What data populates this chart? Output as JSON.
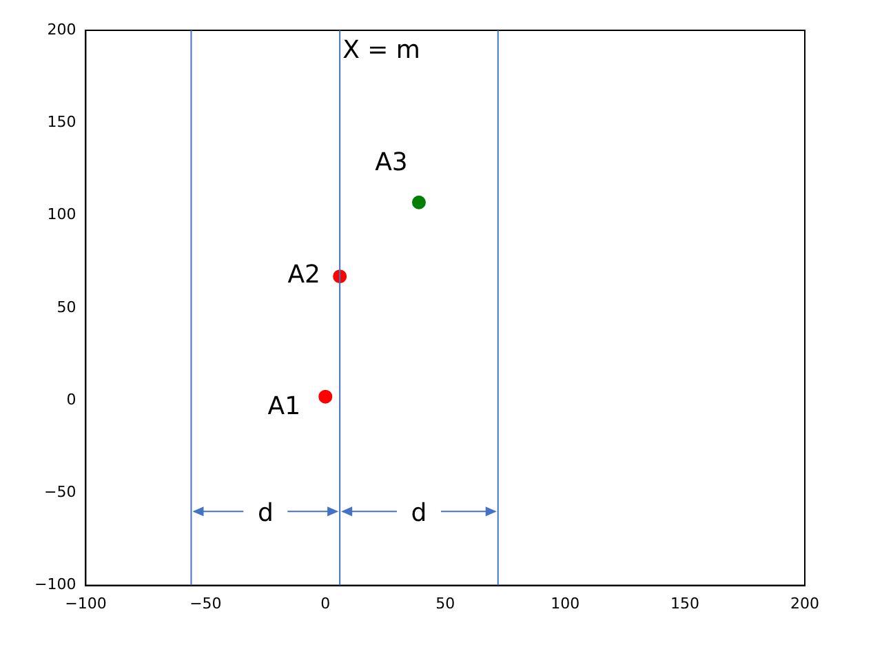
{
  "chart_data": {
    "type": "scatter",
    "series": [
      {
        "color": "#ff0000",
        "x": [
          0,
          6
        ],
        "values": [
          2,
          67
        ]
      },
      {
        "color": "#008000",
        "x": [
          39
        ],
        "values": [
          107
        ]
      }
    ],
    "xlim": [
      -100,
      200
    ],
    "xticks": [
      -100,
      -50,
      0,
      50,
      100,
      150,
      200
    ],
    "ylim": [
      -100,
      200
    ],
    "yticks": [
      -100,
      -50,
      0,
      50,
      100,
      150,
      200
    ],
    "marker": "circle",
    "grid": false,
    "legend": false,
    "ref_lines": [
      {
        "axis": "x",
        "value": -56,
        "color": "#4472c4"
      },
      {
        "axis": "x",
        "value": 6,
        "color": "#4472c4",
        "label": "X = m"
      },
      {
        "axis": "x",
        "value": 72,
        "color": "#4472c4"
      }
    ],
    "annotations": [
      {
        "text": "A1",
        "x": 0,
        "y": 2
      },
      {
        "text": "A2",
        "x": 6,
        "y": 67
      },
      {
        "text": "A3",
        "x": 39,
        "y": 107
      },
      {
        "text": "d",
        "x": -56,
        "y": -60
      },
      {
        "text": "d",
        "x": 6,
        "y": -60
      }
    ]
  }
}
